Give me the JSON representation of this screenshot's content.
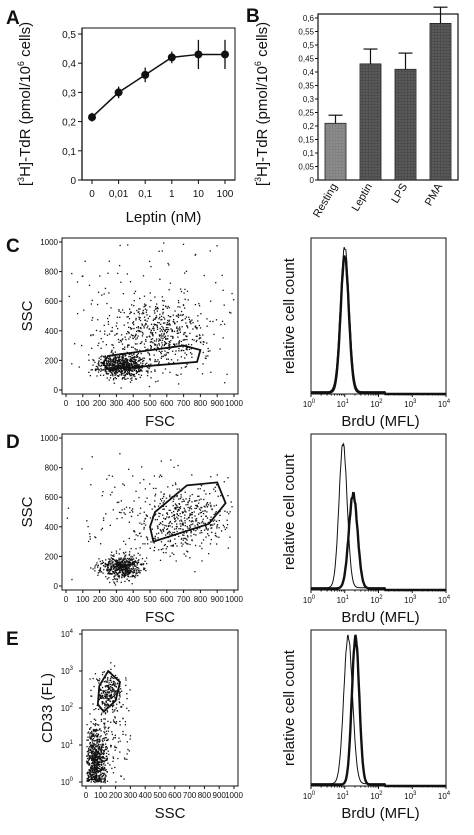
{
  "panels": {
    "A": "A",
    "B": "B",
    "C": "C",
    "D": "D",
    "E": "E"
  },
  "chart_data": [
    {
      "id": "A",
      "type": "line",
      "xlabel": "Leptin (nM)",
      "ylabel_parts": [
        "[",
        "3",
        "H]-TdR (pmol/10",
        "6",
        " cells)"
      ],
      "categories": [
        "0",
        "0,01",
        "0,1",
        "1",
        "10",
        "100"
      ],
      "values": [
        0.215,
        0.3,
        0.36,
        0.42,
        0.43,
        0.43
      ],
      "errors": [
        0.015,
        0.02,
        0.025,
        0.02,
        0.05,
        0.05
      ],
      "ylim": [
        0,
        0.5
      ],
      "yticks": [
        "0",
        "0,1",
        "0,2",
        "0,3",
        "0,4",
        "0,5"
      ]
    },
    {
      "id": "B",
      "type": "bar",
      "ylabel_parts": [
        "[",
        "3",
        "H]-TdR (pmol/10",
        "6",
        " cells)"
      ],
      "categories": [
        "Resting",
        "Leptin",
        "LPS",
        "PMA"
      ],
      "values": [
        0.21,
        0.43,
        0.41,
        0.58
      ],
      "errors": [
        0.03,
        0.055,
        0.06,
        0.06
      ],
      "ylim": [
        0,
        0.6
      ],
      "yticks": [
        "0",
        "0,05",
        "0,1",
        "0,15",
        "0,2",
        "0,25",
        "0,3",
        "0,35",
        "0,4",
        "0,45",
        "0,5",
        "0,55",
        "0,6"
      ]
    },
    {
      "id": "C",
      "type": "scatter",
      "xlabel": "FSC",
      "ylabel": "SSC",
      "xticks": [
        "0",
        "100",
        "200",
        "300",
        "400",
        "500",
        "600",
        "700",
        "800",
        "900",
        "1000"
      ],
      "yticks": [
        "0",
        "200",
        "400",
        "600",
        "800",
        "1000"
      ],
      "xlim": [
        0,
        1000
      ],
      "ylim": [
        0,
        1000
      ],
      "gate": [
        [
          250,
          140
        ],
        [
          780,
          190
        ],
        [
          800,
          270
        ],
        [
          700,
          300
        ],
        [
          250,
          230
        ],
        [
          220,
          180
        ]
      ],
      "clusters": [
        {
          "cx": 330,
          "cy": 170,
          "sx": 70,
          "sy": 40,
          "n": 700
        },
        {
          "cx": 560,
          "cy": 380,
          "sx": 160,
          "sy": 110,
          "n": 500
        },
        {
          "cx": 500,
          "cy": 500,
          "sx": 260,
          "sy": 260,
          "n": 180
        }
      ]
    },
    {
      "id": "C2",
      "type": "line",
      "xlabel": "BrdU (MFL)",
      "ylabel": "relative cell count",
      "xlim": [
        0,
        4
      ],
      "log_x": true,
      "xticks": [
        "10",
        "10",
        "10",
        "10",
        "10"
      ],
      "xtick_exp": [
        "0",
        "1",
        "2",
        "3",
        "4"
      ],
      "series": [
        {
          "style": "thin",
          "mu": 1.0,
          "sd": 0.13,
          "peak": 0.95
        },
        {
          "style": "bold",
          "mu": 1.0,
          "sd": 0.12,
          "peak": 0.9
        }
      ]
    },
    {
      "id": "D",
      "type": "scatter",
      "xlabel": "FSC",
      "ylabel": "SSC",
      "xticks": [
        "0",
        "100",
        "200",
        "300",
        "400",
        "500",
        "600",
        "700",
        "800",
        "900",
        "1000"
      ],
      "yticks": [
        "0",
        "200",
        "400",
        "600",
        "800",
        "1000"
      ],
      "xlim": [
        0,
        1000
      ],
      "ylim": [
        0,
        1000
      ],
      "gate": [
        [
          520,
          300
        ],
        [
          850,
          420
        ],
        [
          950,
          560
        ],
        [
          900,
          700
        ],
        [
          720,
          680
        ],
        [
          530,
          500
        ],
        [
          500,
          400
        ]
      ],
      "clusters": [
        {
          "cx": 320,
          "cy": 130,
          "sx": 60,
          "sy": 40,
          "n": 550
        },
        {
          "cx": 700,
          "cy": 450,
          "sx": 140,
          "sy": 110,
          "n": 450
        },
        {
          "cx": 500,
          "cy": 450,
          "sx": 260,
          "sy": 260,
          "n": 150
        }
      ]
    },
    {
      "id": "D2",
      "type": "line",
      "xlabel": "BrdU (MFL)",
      "ylabel": "relative cell count",
      "xlim": [
        0,
        4
      ],
      "log_x": true,
      "xticks": [
        "10",
        "10",
        "10",
        "10",
        "10"
      ],
      "xtick_exp": [
        "0",
        "1",
        "2",
        "3",
        "4"
      ],
      "series": [
        {
          "style": "thin",
          "mu": 0.95,
          "sd": 0.12,
          "peak": 0.95
        },
        {
          "style": "bold",
          "mu": 1.25,
          "sd": 0.13,
          "peak": 0.62
        }
      ]
    },
    {
      "id": "E",
      "type": "scatter",
      "xlabel": "SSC",
      "ylabel": "CD33 (FL)",
      "xticks": [
        "0",
        "100",
        "200",
        "300",
        "400",
        "500",
        "600",
        "700",
        "800",
        "900",
        "1000"
      ],
      "yticks": [
        "10",
        "10",
        "10",
        "10",
        "10"
      ],
      "ytick_exp": [
        "0",
        "1",
        "2",
        "3",
        "4"
      ],
      "xlim": [
        0,
        1000
      ],
      "ylim": [
        0,
        4
      ],
      "log_y": true,
      "gate": [
        [
          90,
          2.6
        ],
        [
          150,
          3.0
        ],
        [
          230,
          2.7
        ],
        [
          200,
          2.2
        ],
        [
          120,
          1.9
        ],
        [
          80,
          2.1
        ]
      ],
      "clusters": [
        {
          "cx": 60,
          "cy": 0.5,
          "sx": 35,
          "sy": 0.5,
          "n": 800
        },
        {
          "cx": 150,
          "cy": 2.4,
          "sx": 45,
          "sy": 0.25,
          "n": 250
        },
        {
          "cx": 150,
          "cy": 1.3,
          "sx": 80,
          "sy": 0.7,
          "n": 150
        }
      ]
    },
    {
      "id": "E2",
      "type": "line",
      "xlabel": "BrdU (MFL)",
      "ylabel": "relative cell count",
      "xlim": [
        0,
        4
      ],
      "log_x": true,
      "xticks": [
        "10",
        "10",
        "10",
        "10",
        "10"
      ],
      "xtick_exp": [
        "0",
        "1",
        "2",
        "3",
        "4"
      ],
      "series": [
        {
          "style": "thin",
          "mu": 1.1,
          "sd": 0.13,
          "peak": 0.97
        },
        {
          "style": "bold",
          "mu": 1.32,
          "sd": 0.11,
          "peak": 0.97
        }
      ]
    }
  ]
}
